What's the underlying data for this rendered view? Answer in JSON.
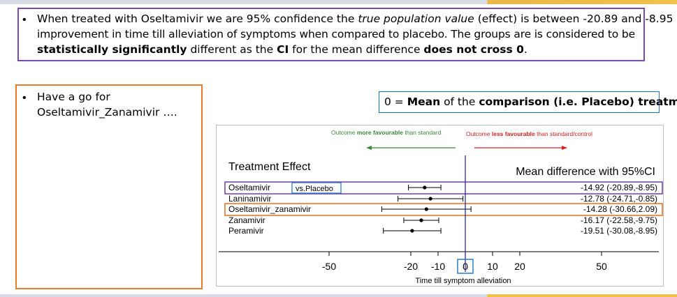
{
  "top_box": {
    "bullet": "•",
    "line1_a": "When treated with Oseltamivir we are 95% confidence the ",
    "line1_b": "true population value",
    "line1_c": " (effect) is between -20.89 and -8.95",
    "line2": "improvement in time till alleviation of symptoms when compared to placebo. The groups are is considered to be",
    "line3_a": "statistically significantly",
    "line3_b": " different as the ",
    "line3_c": "CI",
    "line3_d": " for the mean difference ",
    "line3_e": "does not cross 0",
    "line3_f": "."
  },
  "left_box": {
    "bullet": "•",
    "line1": "Have a go for",
    "line2": "Oseltamivir_Zanamivir …."
  },
  "zero_note": {
    "a": "0 = ",
    "b": "Mean",
    "c": " of the ",
    "d": "comparison (i.e. Placebo) treatment"
  },
  "forest": {
    "favourable_a": "Outcome ",
    "favourable_b": "more favourable",
    "favourable_c": " than standard",
    "unfavourable_a": "Outcome ",
    "unfavourable_b": "less favourable",
    "unfavourable_c": " than standard/control",
    "treatment_header": "Treatment Effect",
    "md_header": "Mean difference with 95%CI",
    "vs_label": "vs.Placebo",
    "xlabel": "Time till symptom alleviation",
    "colors": {
      "green": "#3a8a3a",
      "red": "#d62020",
      "purple": "#7a4bb0",
      "orange": "#e8782a",
      "blue": "#1a73c8"
    }
  },
  "chart_data": {
    "type": "scatter",
    "title": "",
    "xlabel": "Time till symptom alleviation",
    "ylabel": "",
    "xlim": [
      -70,
      70
    ],
    "xticks": [
      -50,
      -20,
      -10,
      0,
      10,
      20,
      50
    ],
    "series": [
      {
        "name": "Oseltamivir",
        "mean": -14.92,
        "lower": -20.89,
        "upper": -8.95,
        "label": "-14.92 (-20.89,-8.95)"
      },
      {
        "name": "Laninamivir",
        "mean": -12.78,
        "lower": -24.71,
        "upper": -0.85,
        "label": "-12.78 (-24.71,-0.85)"
      },
      {
        "name": "Oseltamivir_zanamivir",
        "mean": -14.28,
        "lower": -30.66,
        "upper": 2.09,
        "label": "-14.28 (-30.66,2.09)"
      },
      {
        "name": "Zanamivir",
        "mean": -16.17,
        "lower": -22.58,
        "upper": -9.75,
        "label": "-16.17 (-22.58,-9.75)"
      },
      {
        "name": "Peramivir",
        "mean": -19.51,
        "lower": -30.08,
        "upper": -8.95,
        "label": "-19.51 (-30.08,-8.95)"
      }
    ]
  }
}
